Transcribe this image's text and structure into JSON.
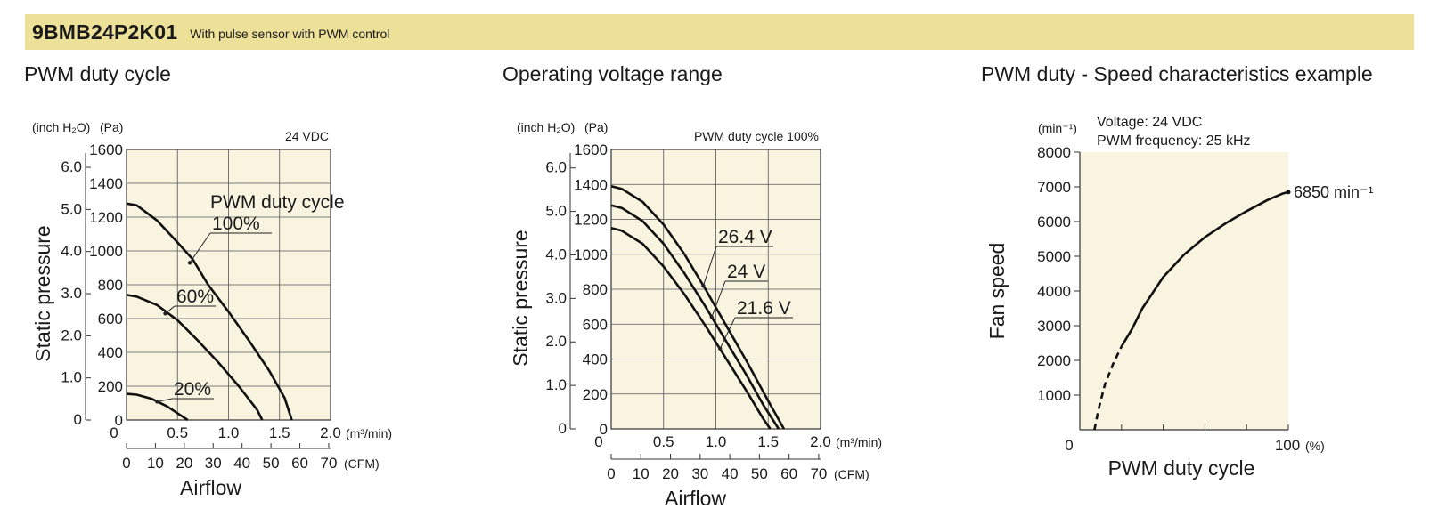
{
  "header": {
    "model": "9BMB24P2K01",
    "subtitle": "With pulse sensor with PWM control"
  },
  "colors": {
    "banner": "#ede199",
    "plot_background": "#f8f4e0",
    "curve": "#111111"
  },
  "chart_data": [
    {
      "type": "line",
      "section_title": "PWM duty cycle",
      "note": "24 VDC",
      "annotation_title": "PWM duty cycle",
      "grid": true,
      "x_unit_primary": "(m³/min)",
      "x_unit_secondary": "(CFM)",
      "y_unit_primary": "(Pa)",
      "y_unit_secondary": "(inch H₂O)",
      "ylabel": "Static pressure",
      "xlabel": "Airflow",
      "xlim": [
        0,
        2.0
      ],
      "ylim": [
        0,
        1600
      ],
      "x_ticks": [
        "0",
        "0.5",
        "1.0",
        "1.5",
        "2.0"
      ],
      "x_secondary_ticks": [
        "0",
        "10",
        "20",
        "30",
        "40",
        "50",
        "60",
        "70"
      ],
      "y_ticks": [
        "0",
        "200",
        "400",
        "600",
        "800",
        "1000",
        "1200",
        "1400",
        "1600"
      ],
      "y_secondary_ticks": [
        "0",
        "1.0",
        "2.0",
        "3.0",
        "4.0",
        "5.0",
        "6.0"
      ],
      "series": [
        {
          "name": "100%",
          "x": [
            0,
            0.1,
            0.3,
            0.5,
            0.65,
            0.8,
            1.0,
            1.2,
            1.4,
            1.55,
            1.62
          ],
          "y": [
            1280,
            1270,
            1180,
            1050,
            950,
            800,
            640,
            470,
            290,
            130,
            0
          ]
        },
        {
          "name": "60%",
          "x": [
            0,
            0.1,
            0.3,
            0.5,
            0.7,
            0.9,
            1.1,
            1.28,
            1.33
          ],
          "y": [
            740,
            730,
            680,
            590,
            470,
            340,
            200,
            60,
            0
          ]
        },
        {
          "name": "20%",
          "x": [
            0,
            0.1,
            0.25,
            0.4,
            0.5,
            0.6
          ],
          "y": [
            155,
            150,
            125,
            80,
            40,
            0
          ]
        }
      ]
    },
    {
      "type": "line",
      "section_title": "Operating voltage range",
      "note": "PWM duty cycle 100%",
      "grid": true,
      "x_unit_primary": "(m³/min)",
      "x_unit_secondary": "(CFM)",
      "y_unit_primary": "(Pa)",
      "y_unit_secondary": "(inch H₂O)",
      "ylabel": "Static pressure",
      "xlabel": "Airflow",
      "xlim": [
        0,
        2.0
      ],
      "ylim": [
        0,
        1600
      ],
      "x_ticks": [
        "0",
        "0.5",
        "1.0",
        "1.5",
        "2.0"
      ],
      "x_secondary_ticks": [
        "0",
        "10",
        "20",
        "30",
        "40",
        "50",
        "60",
        "70"
      ],
      "y_ticks": [
        "0",
        "200",
        "400",
        "600",
        "800",
        "1000",
        "1200",
        "1400",
        "1600"
      ],
      "y_secondary_ticks": [
        "0",
        "1.0",
        "2.0",
        "3.0",
        "4.0",
        "5.0",
        "6.0"
      ],
      "series": [
        {
          "name": "26.4 V",
          "x": [
            0,
            0.1,
            0.3,
            0.5,
            0.7,
            0.9,
            1.1,
            1.3,
            1.5,
            1.65
          ],
          "y": [
            1390,
            1375,
            1300,
            1170,
            1000,
            800,
            590,
            380,
            160,
            0
          ]
        },
        {
          "name": "24 V",
          "x": [
            0,
            0.1,
            0.3,
            0.5,
            0.7,
            0.9,
            1.1,
            1.3,
            1.45,
            1.6
          ],
          "y": [
            1280,
            1265,
            1190,
            1060,
            890,
            700,
            500,
            300,
            140,
            0
          ]
        },
        {
          "name": "21.6 V",
          "x": [
            0,
            0.1,
            0.3,
            0.5,
            0.7,
            0.9,
            1.1,
            1.3,
            1.45,
            1.52
          ],
          "y": [
            1150,
            1135,
            1060,
            930,
            770,
            590,
            400,
            210,
            60,
            0
          ]
        }
      ]
    },
    {
      "type": "line",
      "section_title": "PWM duty - Speed characteristics example",
      "note_lines": [
        "Voltage: 24 VDC",
        "PWM frequency: 25 kHz"
      ],
      "grid": false,
      "x_unit": "(%)",
      "y_unit": "(min⁻¹)",
      "ylabel": "Fan speed",
      "xlabel": "PWM duty cycle",
      "xlim": [
        0,
        100
      ],
      "ylim": [
        0,
        8000
      ],
      "x_ticks": [
        "0",
        "100"
      ],
      "y_ticks": [
        "1000",
        "2000",
        "3000",
        "4000",
        "5000",
        "6000",
        "7000",
        "8000"
      ],
      "end_label": "6850 min⁻¹",
      "series": [
        {
          "name": "",
          "style": "dashed",
          "x": [
            7,
            9,
            12,
            16,
            20
          ],
          "y": [
            0,
            600,
            1300,
            1900,
            2400
          ]
        },
        {
          "name": "",
          "style": "solid",
          "x": [
            20,
            25,
            30,
            40,
            50,
            60,
            70,
            80,
            90,
            97,
            100
          ],
          "y": [
            2400,
            2900,
            3500,
            4400,
            5050,
            5550,
            5950,
            6300,
            6620,
            6800,
            6850
          ]
        }
      ]
    }
  ]
}
